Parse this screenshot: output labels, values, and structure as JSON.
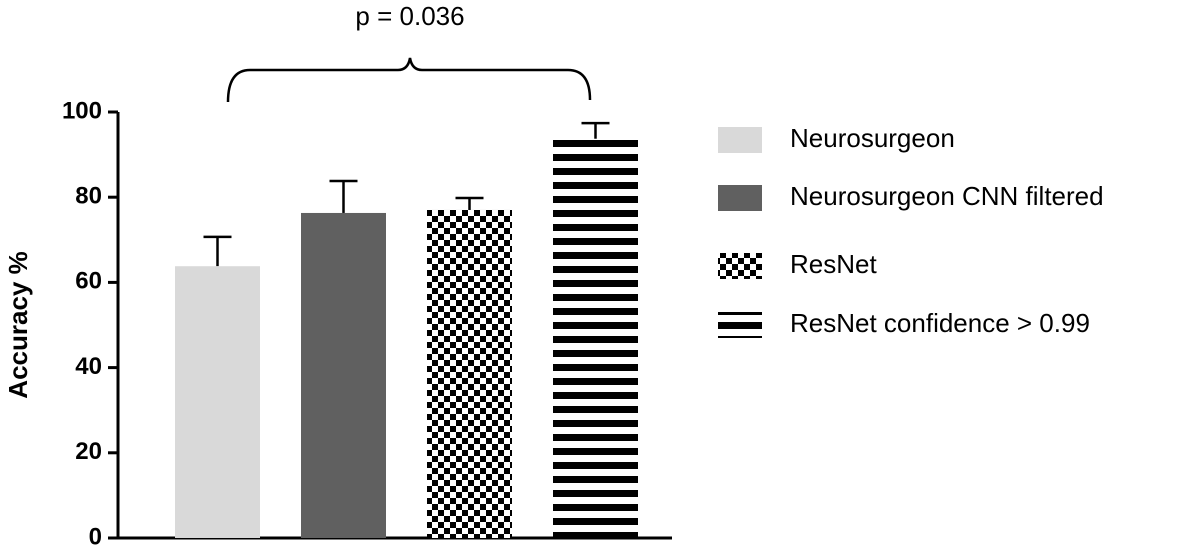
{
  "chart_data": {
    "type": "bar",
    "annotation": "p = 0.036",
    "ylabel": "Accuracy %",
    "categories": [
      null
    ],
    "series": [
      {
        "name": "Neurosurgeon",
        "color": "#d9d9d9",
        "pattern": "solid",
        "values": [
          63.8
        ],
        "errors": [
          6.9
        ]
      },
      {
        "name": "Neurosurgeon CNN filtered",
        "color": "#606060",
        "pattern": "solid",
        "values": [
          76.3
        ],
        "errors": [
          7.5
        ]
      },
      {
        "name": "ResNet",
        "color": "#000000",
        "pattern": "checker",
        "values": [
          77
        ],
        "errors": [
          2.8
        ]
      },
      {
        "name": "ResNet confidence > 0.99",
        "color": "#000000",
        "pattern": "hstripe",
        "values": [
          93.7
        ],
        "errors": [
          3.7
        ]
      }
    ],
    "ylim": [
      0,
      100
    ],
    "yticks": [
      0,
      20,
      40,
      60,
      80,
      100
    ],
    "grid": false
  }
}
